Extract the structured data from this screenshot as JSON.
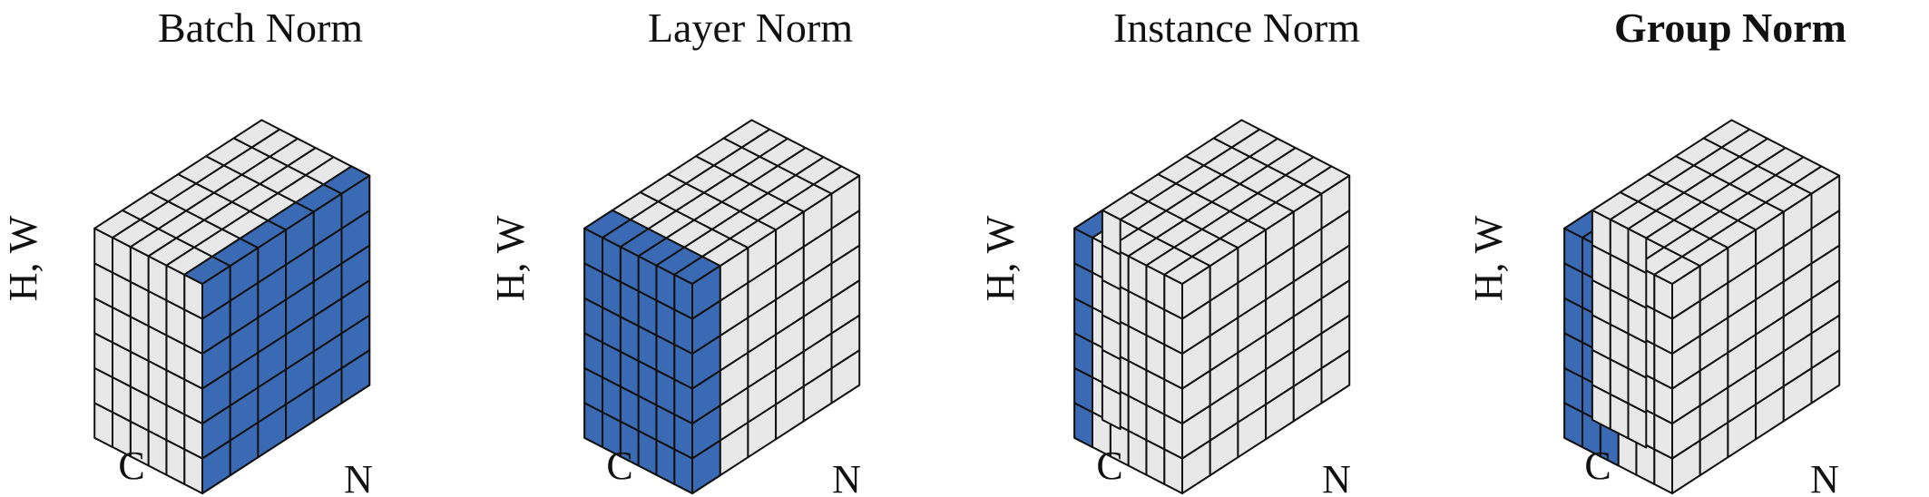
{
  "colors": {
    "highlight": "#3a6ab4",
    "cell": "#e8e8e8",
    "edge": "#111111",
    "background": "#ffffff"
  },
  "grid_cells_per_edge": 6,
  "panels": [
    {
      "title": "Batch Norm",
      "title_bold": false,
      "axis_vertical": "H, W",
      "axis_left": "C",
      "axis_right": "N",
      "highlight": {
        "type": "right-face",
        "c_from": 0,
        "c_to": 6,
        "n_from": 0,
        "n_to": 1
      }
    },
    {
      "title": "Layer Norm",
      "title_bold": false,
      "axis_vertical": "H, W",
      "axis_left": "C",
      "axis_right": "N",
      "highlight": {
        "type": "n-slice",
        "c_from": 0,
        "c_to": 6,
        "n_from": 0,
        "n_to": 1
      }
    },
    {
      "title": "Instance Norm",
      "title_bold": false,
      "axis_vertical": "H, W",
      "axis_left": "C",
      "axis_right": "N",
      "highlight": {
        "type": "column",
        "c_from": 5,
        "c_to": 6,
        "n_from": 0,
        "n_to": 1
      }
    },
    {
      "title": "Group Norm",
      "title_bold": true,
      "axis_vertical": "H, W",
      "axis_left": "C",
      "axis_right": "N",
      "highlight": {
        "type": "column",
        "c_from": 3,
        "c_to": 6,
        "n_from": 0,
        "n_to": 1
      }
    }
  ]
}
